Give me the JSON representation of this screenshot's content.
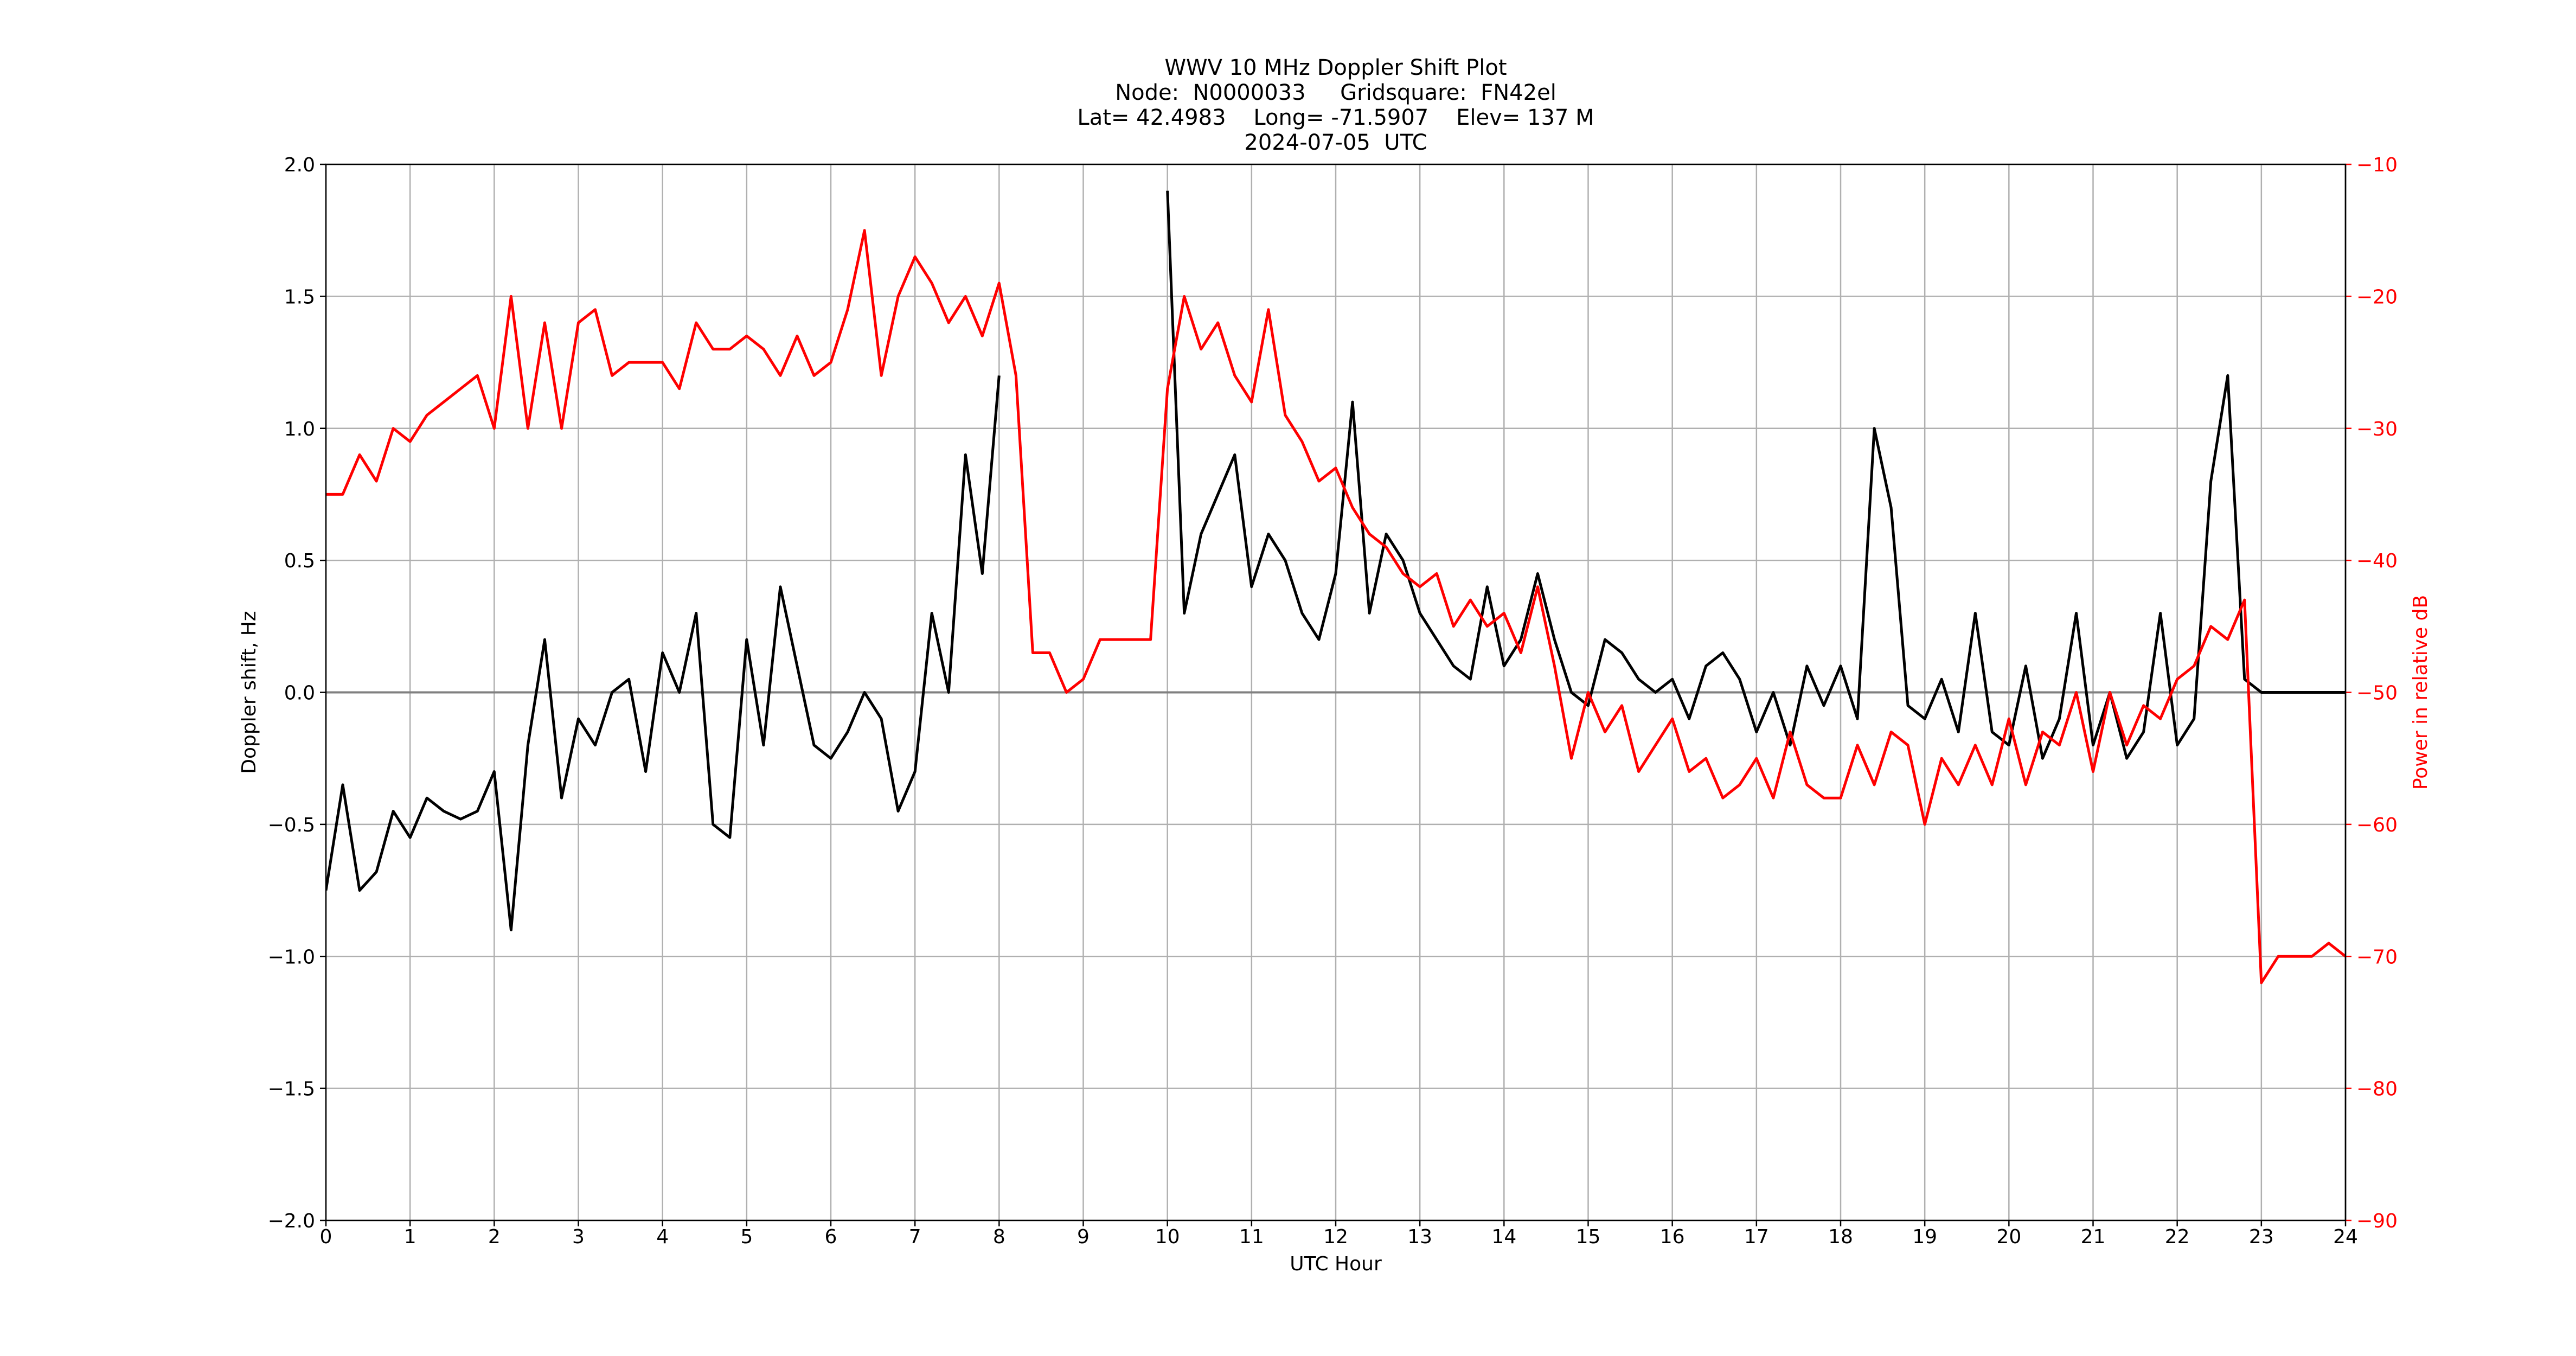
{
  "chart_data": {
    "type": "line",
    "title": [
      "WWV 10 MHz Doppler Shift Plot",
      "Node:  N0000033     Gridsquare:  FN42el",
      "Lat= 42.4983    Long= -71.5907    Elev= 137 M",
      "2024-07-05  UTC"
    ],
    "xlabel": "UTC Hour",
    "ylabel": "Doppler shift, Hz",
    "y2label": "Power in relative dB",
    "y2color": "#ff0000",
    "grid": true,
    "hline": 0,
    "xlim": [
      0,
      24
    ],
    "xticks": [
      0,
      1,
      2,
      3,
      4,
      5,
      6,
      7,
      8,
      9,
      10,
      11,
      12,
      13,
      14,
      15,
      16,
      17,
      18,
      19,
      20,
      21,
      22,
      23,
      24
    ],
    "ylim": [
      -2,
      2
    ],
    "yticks": [
      {
        "value": -2,
        "label": "−2.0"
      },
      {
        "value": -1.5,
        "label": "−1.5"
      },
      {
        "value": -1,
        "label": "−1.0"
      },
      {
        "value": -0.5,
        "label": "−0.5"
      },
      {
        "value": 0,
        "label": "0.0"
      },
      {
        "value": 0.5,
        "label": "0.5"
      },
      {
        "value": 1,
        "label": "1.0"
      },
      {
        "value": 1.5,
        "label": "1.5"
      },
      {
        "value": 2,
        "label": "2.0"
      }
    ],
    "y2lim": [
      -90,
      -10
    ],
    "y2ticks": [
      {
        "value": -90,
        "label": "−90"
      },
      {
        "value": -80,
        "label": "−80"
      },
      {
        "value": -70,
        "label": "−70"
      },
      {
        "value": -60,
        "label": "−60"
      },
      {
        "value": -50,
        "label": "−50"
      },
      {
        "value": -40,
        "label": "−40"
      },
      {
        "value": -30,
        "label": "−30"
      },
      {
        "value": -20,
        "label": "−20"
      },
      {
        "value": -10,
        "label": "−10"
      }
    ],
    "x": [
      0,
      0.2,
      0.4,
      0.6,
      0.8,
      1,
      1.2,
      1.4,
      1.6,
      1.8,
      2,
      2.2,
      2.4,
      2.6,
      2.8,
      3,
      3.2,
      3.4,
      3.6,
      3.8,
      4,
      4.2,
      4.4,
      4.6,
      4.8,
      5,
      5.2,
      5.4,
      5.6,
      5.8,
      6,
      6.2,
      6.4,
      6.6,
      6.8,
      7,
      7.2,
      7.4,
      7.6,
      7.8,
      8,
      8.2,
      8.4,
      8.6,
      8.8,
      9,
      9.2,
      9.4,
      9.6,
      9.8,
      10,
      10.2,
      10.4,
      10.6,
      10.8,
      11,
      11.2,
      11.4,
      11.6,
      11.8,
      12,
      12.2,
      12.4,
      12.6,
      12.8,
      13,
      13.2,
      13.4,
      13.6,
      13.8,
      14,
      14.2,
      14.4,
      14.6,
      14.8,
      15,
      15.2,
      15.4,
      15.6,
      15.8,
      16,
      16.2,
      16.4,
      16.6,
      16.8,
      17,
      17.2,
      17.4,
      17.6,
      17.8,
      18,
      18.2,
      18.4,
      18.6,
      18.8,
      19,
      19.2,
      19.4,
      19.6,
      19.8,
      20,
      20.2,
      20.4,
      20.6,
      20.8,
      21,
      21.2,
      21.4,
      21.6,
      21.8,
      22,
      22.2,
      22.4,
      22.6,
      22.8,
      23,
      23.2,
      23.4,
      23.6,
      23.8,
      24
    ],
    "series": [
      {
        "color": "#000000",
        "axis": "y",
        "values": [
          -0.75,
          -0.35,
          -0.75,
          -0.68,
          -0.45,
          -0.55,
          -0.4,
          -0.45,
          -0.48,
          -0.45,
          -0.3,
          -0.9,
          -0.2,
          0.2,
          -0.4,
          -0.1,
          -0.2,
          0,
          0.05,
          -0.3,
          0.15,
          0,
          0.3,
          -0.5,
          -0.55,
          0.2,
          -0.2,
          0.4,
          0.1,
          -0.2,
          -0.25,
          -0.15,
          0,
          -0.1,
          -0.45,
          -0.3,
          0.3,
          0,
          0.9,
          0.45,
          1.2,
          null,
          null,
          null,
          null,
          null,
          null,
          null,
          null,
          null,
          1.9,
          0.3,
          0.6,
          0.75,
          0.9,
          0.4,
          0.6,
          0.5,
          0.3,
          0.2,
          0.45,
          1.1,
          0.3,
          0.6,
          0.5,
          0.3,
          0.2,
          0.1,
          0.05,
          0.4,
          0.1,
          0.2,
          0.45,
          0.2,
          0,
          -0.05,
          0.2,
          0.15,
          0.05,
          0,
          0.05,
          -0.1,
          0.1,
          0.15,
          0.05,
          -0.15,
          0,
          -0.2,
          0.1,
          -0.05,
          0.1,
          -0.1,
          1,
          0.7,
          -0.05,
          -0.1,
          0.05,
          -0.15,
          0.3,
          -0.15,
          -0.2,
          0.1,
          -0.25,
          -0.1,
          0.3,
          -0.2,
          0,
          -0.25,
          -0.15,
          0.3,
          -0.2,
          -0.1,
          0.8,
          1.2,
          0.05,
          0,
          0,
          0,
          0,
          0,
          0
        ]
      },
      {
        "color": "#ff0000",
        "axis": "y2",
        "values": [
          -35,
          -35,
          -32,
          -34,
          -30,
          -31,
          -29,
          -28,
          -27,
          -26,
          -30,
          -20,
          -30,
          -22,
          -30,
          -22,
          -21,
          -26,
          -25,
          -25,
          -25,
          -27,
          -22,
          -24,
          -24,
          -23,
          -24,
          -26,
          -23,
          -26,
          -25,
          -21,
          -15,
          -26,
          -20,
          -17,
          -19,
          -22,
          -20,
          -23,
          -19,
          -26,
          -47,
          -47,
          -50,
          -49,
          -46,
          -46,
          -46,
          -46,
          -27,
          -20,
          -24,
          -22,
          -26,
          -28,
          -21,
          -29,
          -31,
          -34,
          -33,
          -36,
          -38,
          -39,
          -41,
          -42,
          -41,
          -45,
          -43,
          -45,
          -44,
          -47,
          -42,
          -48,
          -55,
          -50,
          -53,
          -51,
          -56,
          -54,
          -52,
          -56,
          -55,
          -58,
          -57,
          -55,
          -58,
          -53,
          -57,
          -58,
          -58,
          -54,
          -57,
          -53,
          -54,
          -60,
          -55,
          -57,
          -54,
          -57,
          -52,
          -57,
          -53,
          -54,
          -50,
          -56,
          -50,
          -54,
          -51,
          -52,
          -49,
          -48,
          -45,
          -46,
          -43,
          -72,
          -70,
          -70,
          -70,
          -69,
          -70
        ]
      }
    ]
  }
}
